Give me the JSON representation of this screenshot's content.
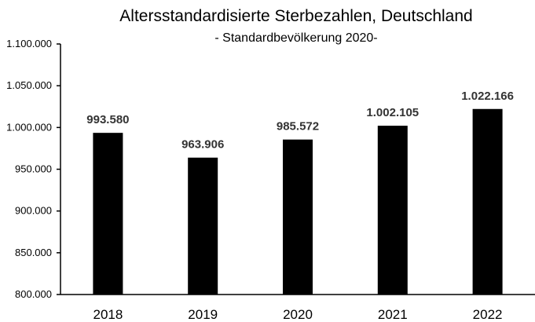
{
  "chart_data": {
    "type": "bar",
    "title": "Altersstandardisierte Sterbezahlen, Deutschland",
    "subtitle": "- Standardbevölkerung 2020-",
    "categories": [
      "2018",
      "2019",
      "2020",
      "2021",
      "2022"
    ],
    "values": [
      993580,
      963906,
      985572,
      1002105,
      1022166
    ],
    "data_labels": [
      "993.580",
      "963.906",
      "985.572",
      "1.002.105",
      "1.022.166"
    ],
    "ylim": [
      800000,
      1100000
    ],
    "yticks": [
      800000,
      850000,
      900000,
      950000,
      1000000,
      1050000,
      1100000
    ],
    "ytick_labels": [
      "800.000",
      "850.000",
      "900.000",
      "950.000",
      "1.000.000",
      "1.050.000",
      "1.100.000"
    ],
    "xlabel": "",
    "ylabel": "",
    "grid": false,
    "legend": "none",
    "bar_color": "#000000"
  }
}
